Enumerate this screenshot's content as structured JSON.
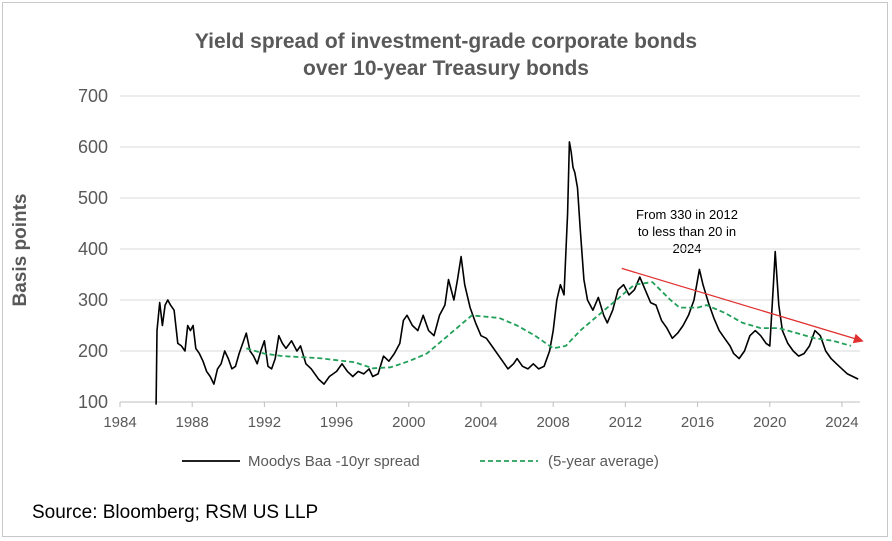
{
  "chart_data": {
    "type": "line",
    "title_lines": [
      "Yield spread of investment-grade corporate bonds",
      "over 10-year Treasury bonds"
    ],
    "ylabel": "Basis points",
    "xlabel": "",
    "xlim": [
      1984,
      2025
    ],
    "ylim": [
      100,
      700
    ],
    "x_ticks": [
      1984,
      1988,
      1992,
      1996,
      2000,
      2004,
      2008,
      2012,
      2016,
      2020,
      2024
    ],
    "x_tick_labels": [
      "1984",
      "1988",
      "1992",
      "1996",
      "2000",
      "2004",
      "2008",
      "2012",
      "2016",
      "2020",
      "2024"
    ],
    "y_ticks": [
      100,
      200,
      300,
      400,
      500,
      600,
      700
    ],
    "y_tick_labels": [
      "100",
      "200",
      "300",
      "400",
      "500",
      "600",
      "700"
    ],
    "grid": "horizontal",
    "legend": "bottom",
    "series": [
      {
        "name": "Moodys Baa -10yr spread",
        "color": "#000000",
        "style": "solid",
        "points": [
          [
            1986.0,
            95
          ],
          [
            1986.05,
            240
          ],
          [
            1986.2,
            295
          ],
          [
            1986.35,
            250
          ],
          [
            1986.5,
            290
          ],
          [
            1986.65,
            300
          ],
          [
            1986.8,
            290
          ],
          [
            1987.0,
            280
          ],
          [
            1987.2,
            215
          ],
          [
            1987.4,
            210
          ],
          [
            1987.6,
            200
          ],
          [
            1987.75,
            250
          ],
          [
            1987.9,
            240
          ],
          [
            1988.05,
            250
          ],
          [
            1988.2,
            205
          ],
          [
            1988.4,
            195
          ],
          [
            1988.6,
            180
          ],
          [
            1988.8,
            160
          ],
          [
            1989.0,
            150
          ],
          [
            1989.2,
            135
          ],
          [
            1989.4,
            165
          ],
          [
            1989.6,
            175
          ],
          [
            1989.8,
            200
          ],
          [
            1990.0,
            185
          ],
          [
            1990.2,
            165
          ],
          [
            1990.4,
            170
          ],
          [
            1990.6,
            195
          ],
          [
            1990.8,
            215
          ],
          [
            1991.0,
            235
          ],
          [
            1991.2,
            200
          ],
          [
            1991.4,
            190
          ],
          [
            1991.6,
            175
          ],
          [
            1991.8,
            200
          ],
          [
            1992.0,
            220
          ],
          [
            1992.2,
            170
          ],
          [
            1992.4,
            165
          ],
          [
            1992.6,
            185
          ],
          [
            1992.8,
            230
          ],
          [
            1993.0,
            215
          ],
          [
            1993.2,
            205
          ],
          [
            1993.5,
            220
          ],
          [
            1993.8,
            200
          ],
          [
            1994.0,
            210
          ],
          [
            1994.3,
            175
          ],
          [
            1994.6,
            165
          ],
          [
            1995.0,
            145
          ],
          [
            1995.3,
            135
          ],
          [
            1995.6,
            150
          ],
          [
            1996.0,
            160
          ],
          [
            1996.3,
            175
          ],
          [
            1996.6,
            160
          ],
          [
            1996.9,
            150
          ],
          [
            1997.2,
            160
          ],
          [
            1997.5,
            155
          ],
          [
            1997.8,
            165
          ],
          [
            1998.0,
            150
          ],
          [
            1998.3,
            155
          ],
          [
            1998.6,
            190
          ],
          [
            1998.9,
            180
          ],
          [
            1999.2,
            195
          ],
          [
            1999.5,
            215
          ],
          [
            1999.7,
            260
          ],
          [
            1999.9,
            270
          ],
          [
            2000.2,
            250
          ],
          [
            2000.5,
            240
          ],
          [
            2000.8,
            270
          ],
          [
            2001.1,
            240
          ],
          [
            2001.4,
            230
          ],
          [
            2001.7,
            270
          ],
          [
            2002.0,
            290
          ],
          [
            2002.2,
            340
          ],
          [
            2002.5,
            300
          ],
          [
            2002.7,
            340
          ],
          [
            2002.9,
            385
          ],
          [
            2003.1,
            330
          ],
          [
            2003.4,
            285
          ],
          [
            2003.7,
            255
          ],
          [
            2004.0,
            230
          ],
          [
            2004.3,
            225
          ],
          [
            2004.6,
            210
          ],
          [
            2004.9,
            195
          ],
          [
            2005.2,
            180
          ],
          [
            2005.5,
            165
          ],
          [
            2005.8,
            175
          ],
          [
            2006.0,
            185
          ],
          [
            2006.3,
            170
          ],
          [
            2006.6,
            165
          ],
          [
            2006.9,
            175
          ],
          [
            2007.2,
            165
          ],
          [
            2007.5,
            170
          ],
          [
            2007.8,
            200
          ],
          [
            2008.0,
            240
          ],
          [
            2008.2,
            300
          ],
          [
            2008.4,
            330
          ],
          [
            2008.6,
            310
          ],
          [
            2008.8,
            470
          ],
          [
            2008.9,
            610
          ],
          [
            2009.0,
            590
          ],
          [
            2009.1,
            560
          ],
          [
            2009.2,
            550
          ],
          [
            2009.35,
            520
          ],
          [
            2009.5,
            440
          ],
          [
            2009.7,
            340
          ],
          [
            2009.9,
            300
          ],
          [
            2010.2,
            280
          ],
          [
            2010.5,
            305
          ],
          [
            2010.8,
            270
          ],
          [
            2011.0,
            255
          ],
          [
            2011.3,
            280
          ],
          [
            2011.6,
            320
          ],
          [
            2011.9,
            330
          ],
          [
            2012.2,
            310
          ],
          [
            2012.5,
            320
          ],
          [
            2012.8,
            345
          ],
          [
            2013.1,
            320
          ],
          [
            2013.4,
            295
          ],
          [
            2013.7,
            290
          ],
          [
            2014.0,
            260
          ],
          [
            2014.3,
            245
          ],
          [
            2014.6,
            225
          ],
          [
            2014.9,
            235
          ],
          [
            2015.2,
            250
          ],
          [
            2015.5,
            270
          ],
          [
            2015.8,
            300
          ],
          [
            2016.0,
            340
          ],
          [
            2016.1,
            360
          ],
          [
            2016.3,
            330
          ],
          [
            2016.6,
            295
          ],
          [
            2016.9,
            265
          ],
          [
            2017.2,
            240
          ],
          [
            2017.5,
            225
          ],
          [
            2017.8,
            210
          ],
          [
            2018.0,
            195
          ],
          [
            2018.3,
            185
          ],
          [
            2018.6,
            200
          ],
          [
            2018.9,
            230
          ],
          [
            2019.2,
            240
          ],
          [
            2019.5,
            230
          ],
          [
            2019.8,
            215
          ],
          [
            2020.0,
            210
          ],
          [
            2020.2,
            330
          ],
          [
            2020.3,
            395
          ],
          [
            2020.5,
            290
          ],
          [
            2020.7,
            240
          ],
          [
            2021.0,
            215
          ],
          [
            2021.3,
            200
          ],
          [
            2021.6,
            190
          ],
          [
            2021.9,
            195
          ],
          [
            2022.2,
            210
          ],
          [
            2022.5,
            240
          ],
          [
            2022.8,
            230
          ],
          [
            2023.1,
            200
          ],
          [
            2023.4,
            185
          ],
          [
            2023.7,
            175
          ],
          [
            2024.0,
            165
          ],
          [
            2024.3,
            155
          ],
          [
            2024.6,
            150
          ],
          [
            2024.9,
            145
          ]
        ]
      },
      {
        "name": "(5-year average)",
        "color": "#22a05a",
        "style": "dashed",
        "points": [
          [
            1991.0,
            205
          ],
          [
            1992.0,
            195
          ],
          [
            1993.0,
            190
          ],
          [
            1994.0,
            188
          ],
          [
            1995.0,
            186
          ],
          [
            1996.0,
            182
          ],
          [
            1997.0,
            178
          ],
          [
            1998.0,
            166
          ],
          [
            1999.0,
            168
          ],
          [
            2000.0,
            180
          ],
          [
            2001.0,
            195
          ],
          [
            2002.0,
            225
          ],
          [
            2003.0,
            255
          ],
          [
            2003.5,
            270
          ],
          [
            2004.0,
            268
          ],
          [
            2005.0,
            265
          ],
          [
            2006.0,
            250
          ],
          [
            2007.0,
            230
          ],
          [
            2008.0,
            205
          ],
          [
            2008.7,
            210
          ],
          [
            2009.5,
            240
          ],
          [
            2010.5,
            270
          ],
          [
            2011.5,
            300
          ],
          [
            2012.5,
            330
          ],
          [
            2013.5,
            335
          ],
          [
            2014.5,
            300
          ],
          [
            2015.0,
            285
          ],
          [
            2016.0,
            285
          ],
          [
            2016.5,
            290
          ],
          [
            2017.5,
            275
          ],
          [
            2018.5,
            255
          ],
          [
            2019.5,
            245
          ],
          [
            2020.5,
            245
          ],
          [
            2021.5,
            235
          ],
          [
            2022.5,
            225
          ],
          [
            2023.5,
            220
          ],
          [
            2024.5,
            210
          ]
        ]
      }
    ],
    "trend_arrow": {
      "color": "#e03030",
      "from": [
        2011.8,
        362
      ],
      "to": [
        2025.1,
        220
      ]
    },
    "annotation_lines": [
      "From 330 in 2012",
      "to less than 20  in",
      "2024"
    ],
    "source": "Source: Bloomberg; RSM US LLP"
  }
}
